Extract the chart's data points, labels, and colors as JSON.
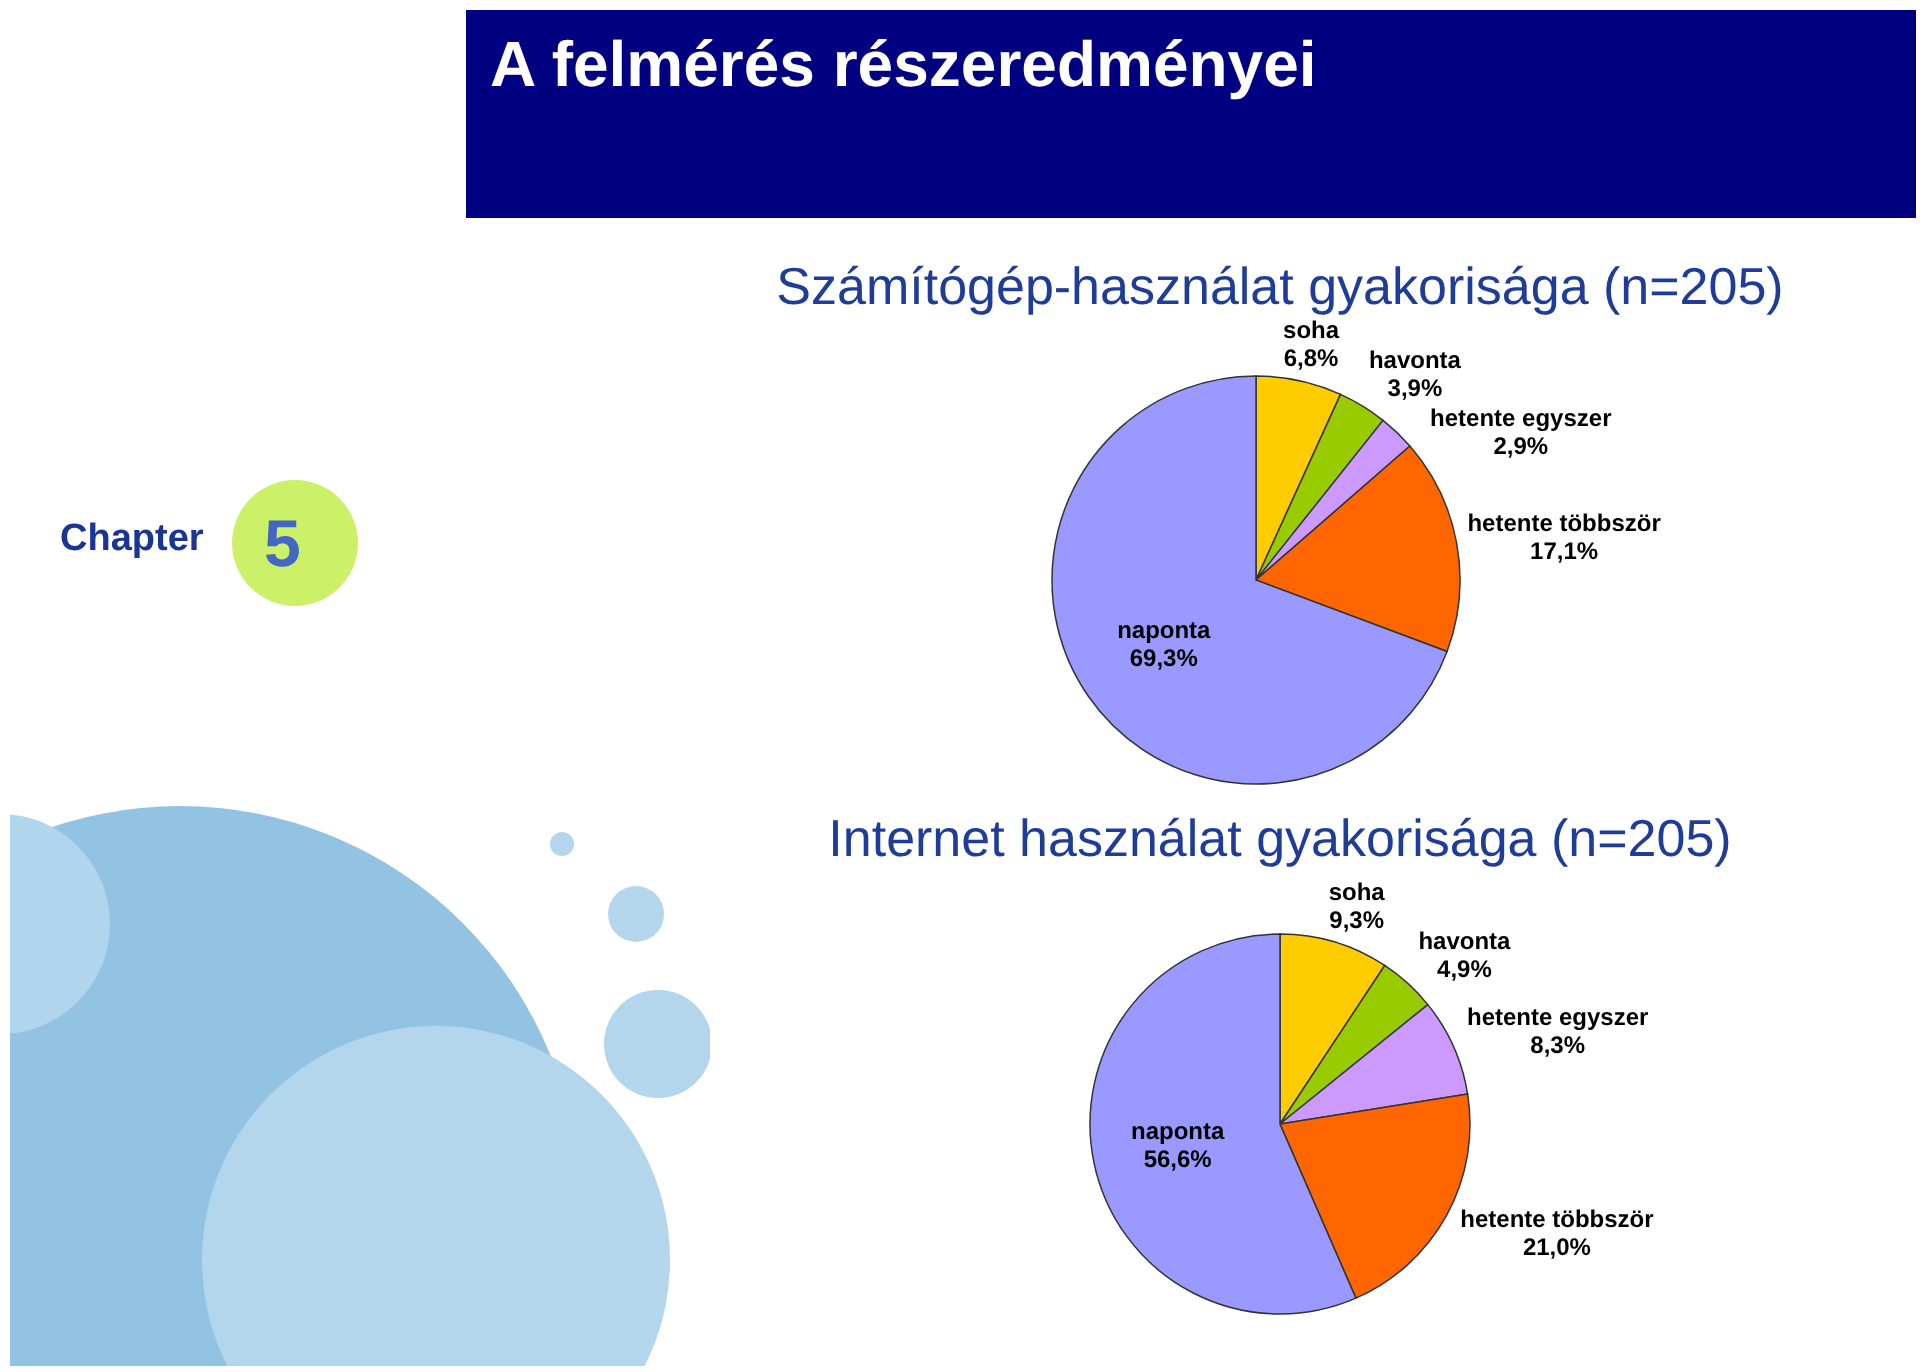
{
  "chart_data": [
    {
      "type": "pie",
      "title": "Számítógép-használat gyakorisága (n=205)",
      "categories": [
        "soha",
        "havonta",
        "hetente egyszer",
        "hetente többször",
        "naponta"
      ],
      "values": [
        6.8,
        3.9,
        2.9,
        17.1,
        69.3
      ],
      "value_labels": [
        "6,8%",
        "3,9%",
        "2,9%",
        "17,1%",
        "69,3%"
      ],
      "colors": [
        "#ffcc00",
        "#99cc00",
        "#cc99ff",
        "#ff6600",
        "#9999ff"
      ],
      "annotations": [
        "A felmérés részeredményei",
        "Chapter",
        "5"
      ]
    },
    {
      "type": "pie",
      "title": "Internet használat gyakorisága (n=205)",
      "categories": [
        "soha",
        "havonta",
        "hetente egyszer",
        "hetente többször",
        "naponta"
      ],
      "values": [
        9.3,
        4.9,
        8.3,
        21.0,
        56.6
      ],
      "value_labels": [
        "9,3%",
        "4,9%",
        "8,3%",
        "21,0%",
        "56,6%"
      ],
      "colors": [
        "#ffcc00",
        "#99cc00",
        "#cc99ff",
        "#ff6600",
        "#9999ff"
      ]
    }
  ]
}
